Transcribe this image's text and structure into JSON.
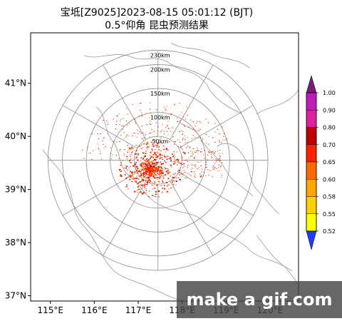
{
  "title_line1": "宝坻[Z9025]2023-08-15 05:01:12 (BJT)",
  "title_line2": "0.5°仰角  昆虫预测结果",
  "watermark": "make a gif.com",
  "chart_data": {
    "type": "radar-map",
    "x_ticks": [
      "115°E",
      "116°E",
      "117°E",
      "118°E",
      "119°E",
      "120°E"
    ],
    "x_values": [
      115,
      116,
      117,
      118,
      119,
      120
    ],
    "y_ticks": [
      "41°N",
      "40°N",
      "39°N",
      "38°N",
      "37°N"
    ],
    "y_values": [
      41,
      40,
      39,
      38,
      37
    ],
    "xlim": [
      114.55,
      120.65
    ],
    "ylim": [
      36.9,
      41.95
    ],
    "radar_center": {
      "lon": 117.45,
      "lat": 39.55
    },
    "range_rings": [
      {
        "label": "50km",
        "km": 50
      },
      {
        "label": "100km",
        "km": 100
      },
      {
        "label": "150km",
        "km": 150
      },
      {
        "label": "200km",
        "km": 200
      },
      {
        "label": "230km",
        "km": 230
      }
    ],
    "colorbar": {
      "labels": [
        "1.00",
        "0.90",
        "0.80",
        "0.70",
        "0.65",
        "0.60",
        "0.58",
        "0.55",
        "0.52"
      ],
      "colors": [
        "#c21ab8",
        "#e01fa0",
        "#c00000",
        "#ff2000",
        "#ff6a00",
        "#ffa500",
        "#ffd000",
        "#ffff00"
      ],
      "over_color": "#7b1a7b",
      "under_color": "#1e3cff"
    }
  }
}
